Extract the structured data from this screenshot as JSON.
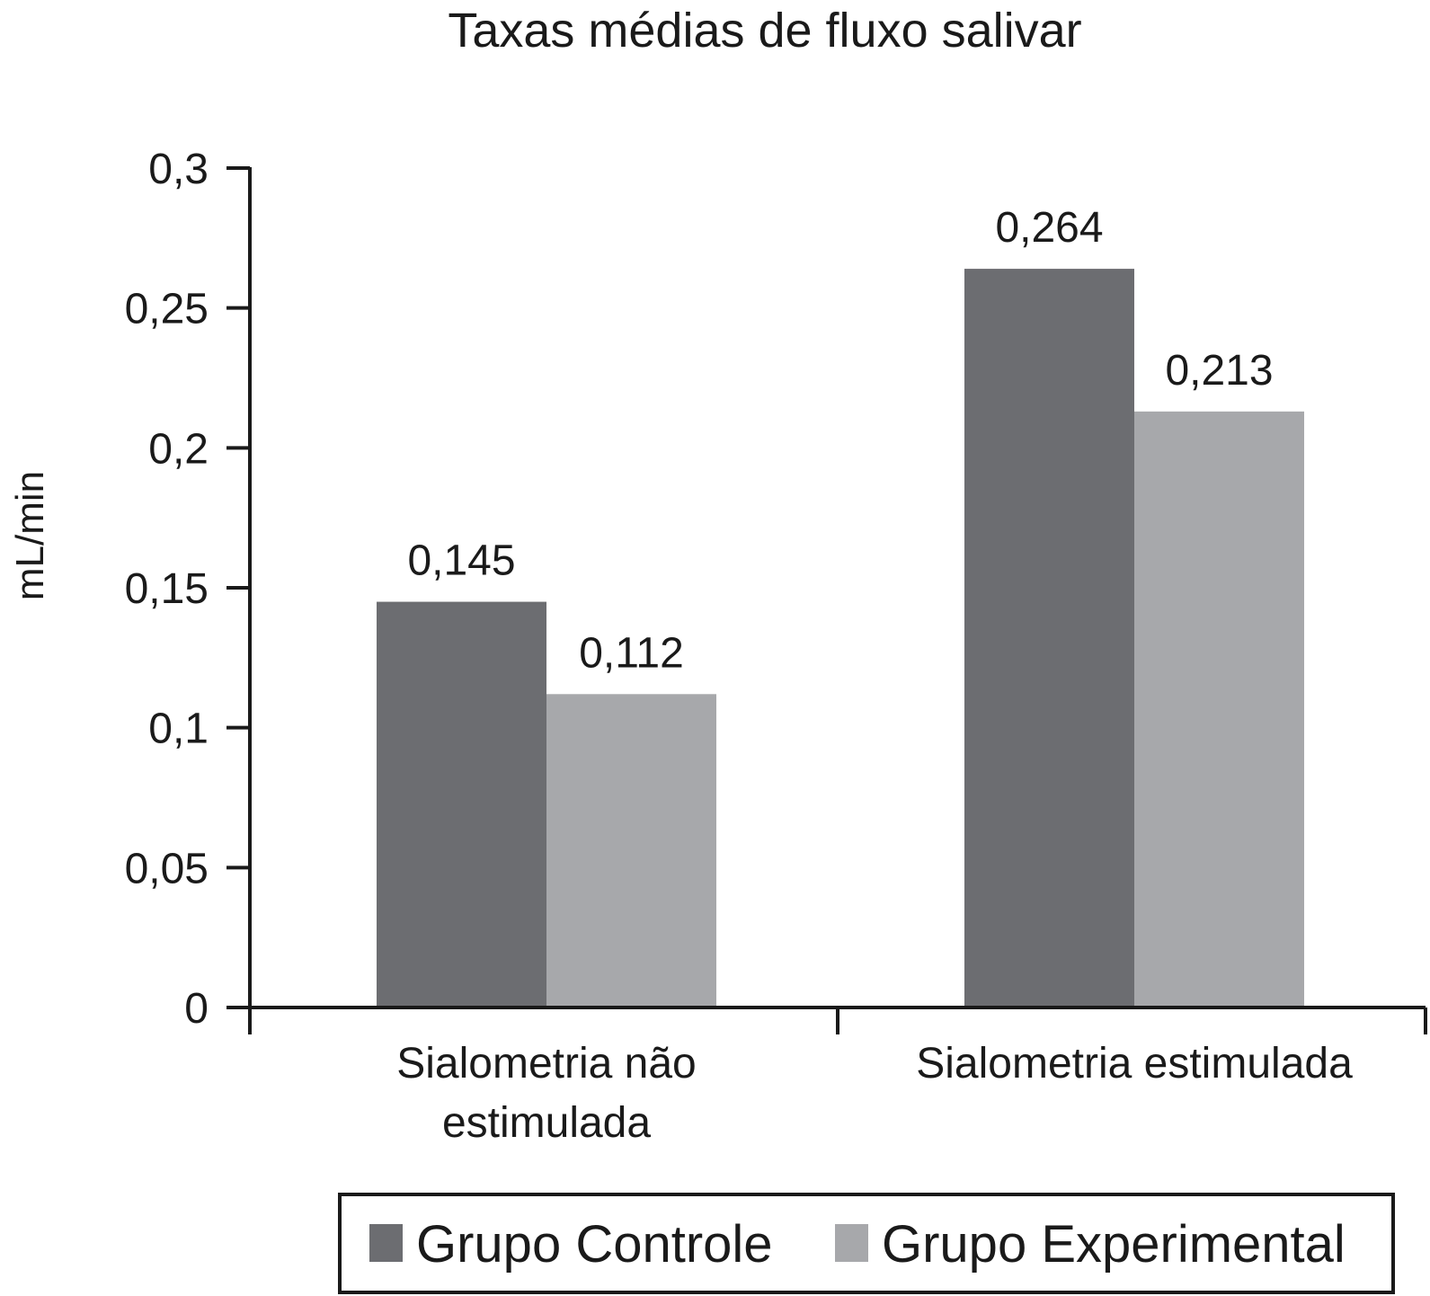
{
  "chart_data": {
    "type": "bar",
    "title": "Taxas médias de fluxo salivar",
    "ylabel": "mL/min",
    "xlabel": "",
    "categories": [
      [
        "Sialometria não",
        "estimulada"
      ],
      [
        "Sialometria estimulada"
      ]
    ],
    "series": [
      {
        "name": "Grupo Controle",
        "values": [
          0.145,
          0.264
        ],
        "labels": [
          "0,145",
          "0,264"
        ],
        "color": "#6c6d71"
      },
      {
        "name": "Grupo Experimental",
        "values": [
          0.112,
          0.213
        ],
        "labels": [
          "0,112",
          "0,213"
        ],
        "color": "#a7a8ab"
      }
    ],
    "ylim": [
      0,
      0.3
    ],
    "yticks": [
      0,
      0.05,
      0.1,
      0.15,
      0.2,
      0.25,
      0.3
    ],
    "ytick_labels": [
      "0",
      "0,05",
      "0,1",
      "0,15",
      "0,2",
      "0,25",
      "0,3"
    ],
    "grid": false,
    "legend": {
      "position": "bottom",
      "bordered": true
    }
  }
}
